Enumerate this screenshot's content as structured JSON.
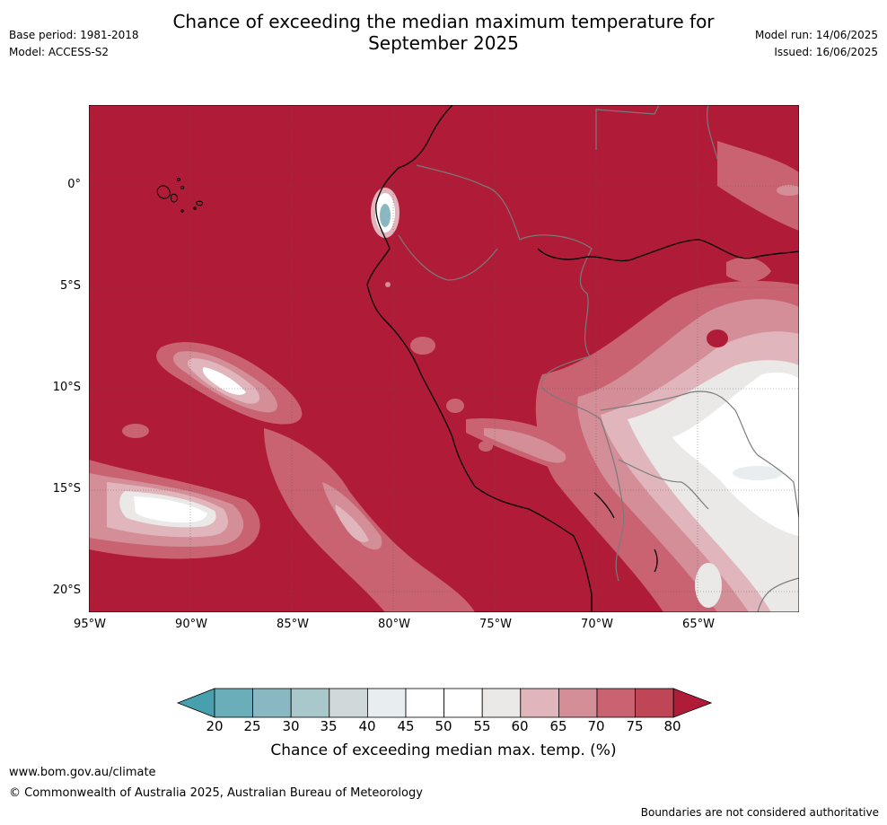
{
  "title_line1": "Chance of exceeding the median maximum temperature for",
  "title_line2": "September 2025",
  "base_period": "Base period: 1981-2018",
  "model": "Model: ACCESS-S2",
  "model_run": "Model run: 14/06/2025",
  "issued": "Issued: 16/06/2025",
  "map": {
    "lat_ticks": [
      "0°",
      "5°S",
      "10°S",
      "15°S",
      "20°S"
    ],
    "lon_ticks": [
      "95°W",
      "90°W",
      "85°W",
      "80°W",
      "75°W",
      "70°W",
      "65°W"
    ],
    "lon_range": [
      -95,
      -60
    ],
    "lat_range": [
      -21,
      4
    ]
  },
  "colorbar": {
    "ticks": [
      "20",
      "25",
      "30",
      "35",
      "40",
      "45",
      "50",
      "55",
      "60",
      "65",
      "70",
      "75",
      "80"
    ],
    "colors": [
      "#48a0ae",
      "#6aaeb9",
      "#8ab8c2",
      "#a9c8cc",
      "#d0d9da",
      "#e8eef0",
      "#ffffff",
      "#ffffff",
      "#ebe9e8",
      "#e0b6bc",
      "#d48e98",
      "#c96371",
      "#be4656",
      "#b01c38"
    ],
    "label": "Chance of exceeding median max. temp. (%)"
  },
  "footer": {
    "url": "www.bom.gov.au/climate",
    "copyright": "© Commonwealth of Australia 2025, Australian Bureau of Meteorology",
    "disclaimer": "Boundaries are not considered authoritative"
  }
}
